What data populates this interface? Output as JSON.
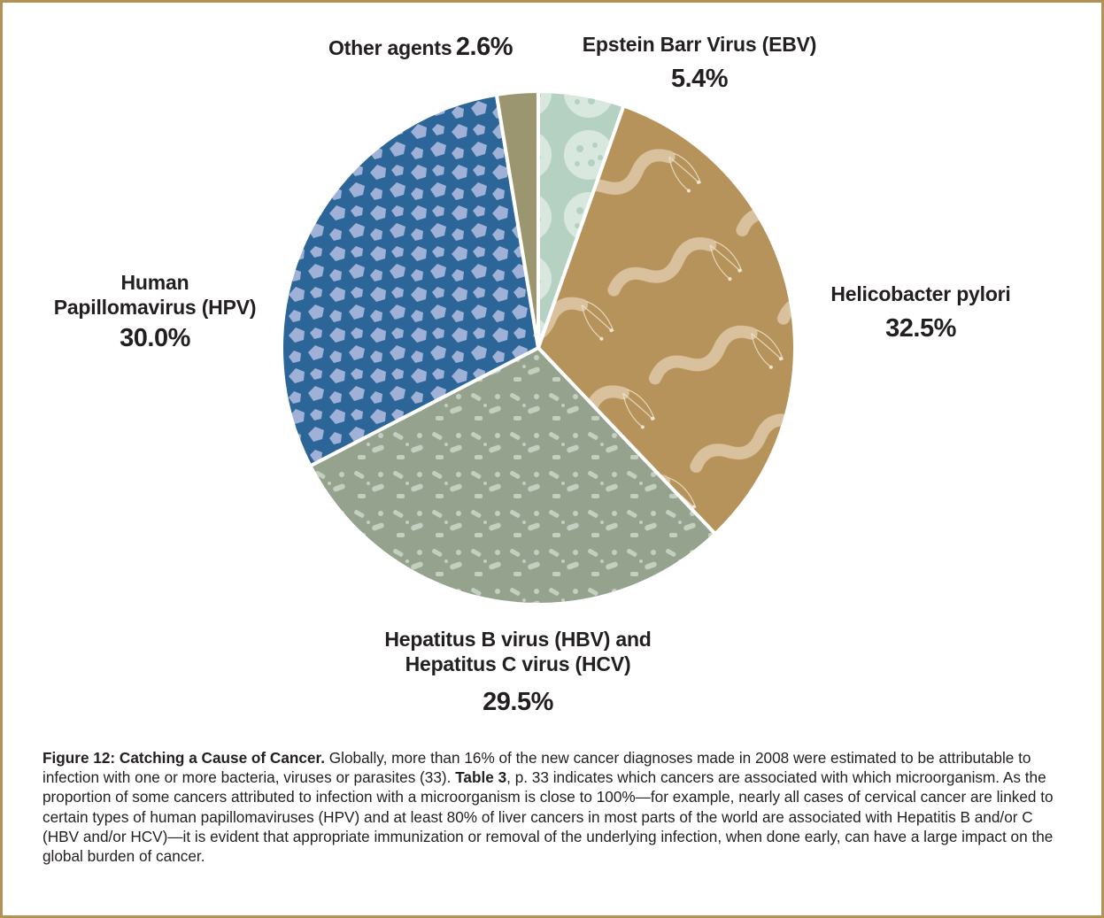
{
  "chart_data": {
    "type": "pie",
    "slices": [
      {
        "name": "Epstein Barr Virus (EBV)",
        "value": 5.4,
        "label": "5.4%",
        "color": "#b5d1c2"
      },
      {
        "name": "Helicobacter pylori",
        "value": 32.5,
        "label": "32.5%",
        "color": "#b6935a"
      },
      {
        "name_lines": [
          "Hepatitus B virus (HBV) and",
          "Hepatitus C virus (HCV)"
        ],
        "name": "Hepatitus B virus (HBV) and Hepatitus C virus (HCV)",
        "value": 29.5,
        "label": "29.5%",
        "color": "#95a28e"
      },
      {
        "name_lines": [
          "Human",
          "Papillomavirus (HPV)"
        ],
        "name": "Human Papillomavirus (HPV)",
        "value": 30.0,
        "label": "30.0%",
        "color": "#2c6598"
      },
      {
        "name": "Other agents",
        "value": 2.6,
        "label": "2.6%",
        "color": "#9b9670"
      }
    ],
    "start_angle_deg": 0,
    "direction": "clockwise"
  },
  "caption": {
    "title": "Figure 12: Catching a Cause of Cancer.",
    "text_1": " Globally, more than 16% of the new cancer diagnoses made in 2008 were estimated to be attributable to infection with one or more bacteria, viruses or parasites (33). ",
    "bold_ref": "Table 3",
    "text_2": ", p. 33 indicates which cancers are associated with which microorganism. As the proportion of some cancers attributed to infection with a microorganism is close to 100%—for example, nearly all cases of cervical cancer are linked to certain types of human papillomaviruses (HPV) and at least 80% of liver cancers in most parts of the world are associated with Hepatitis B and/or C (HBV and/or HCV)—it is evident that appropriate immunization or removal of the underlying infection, when done early, can have a large impact on the global burden of cancer."
  },
  "colors": {
    "frame": "#b39257",
    "text": "#231f20",
    "slice_border": "#ffffff"
  }
}
